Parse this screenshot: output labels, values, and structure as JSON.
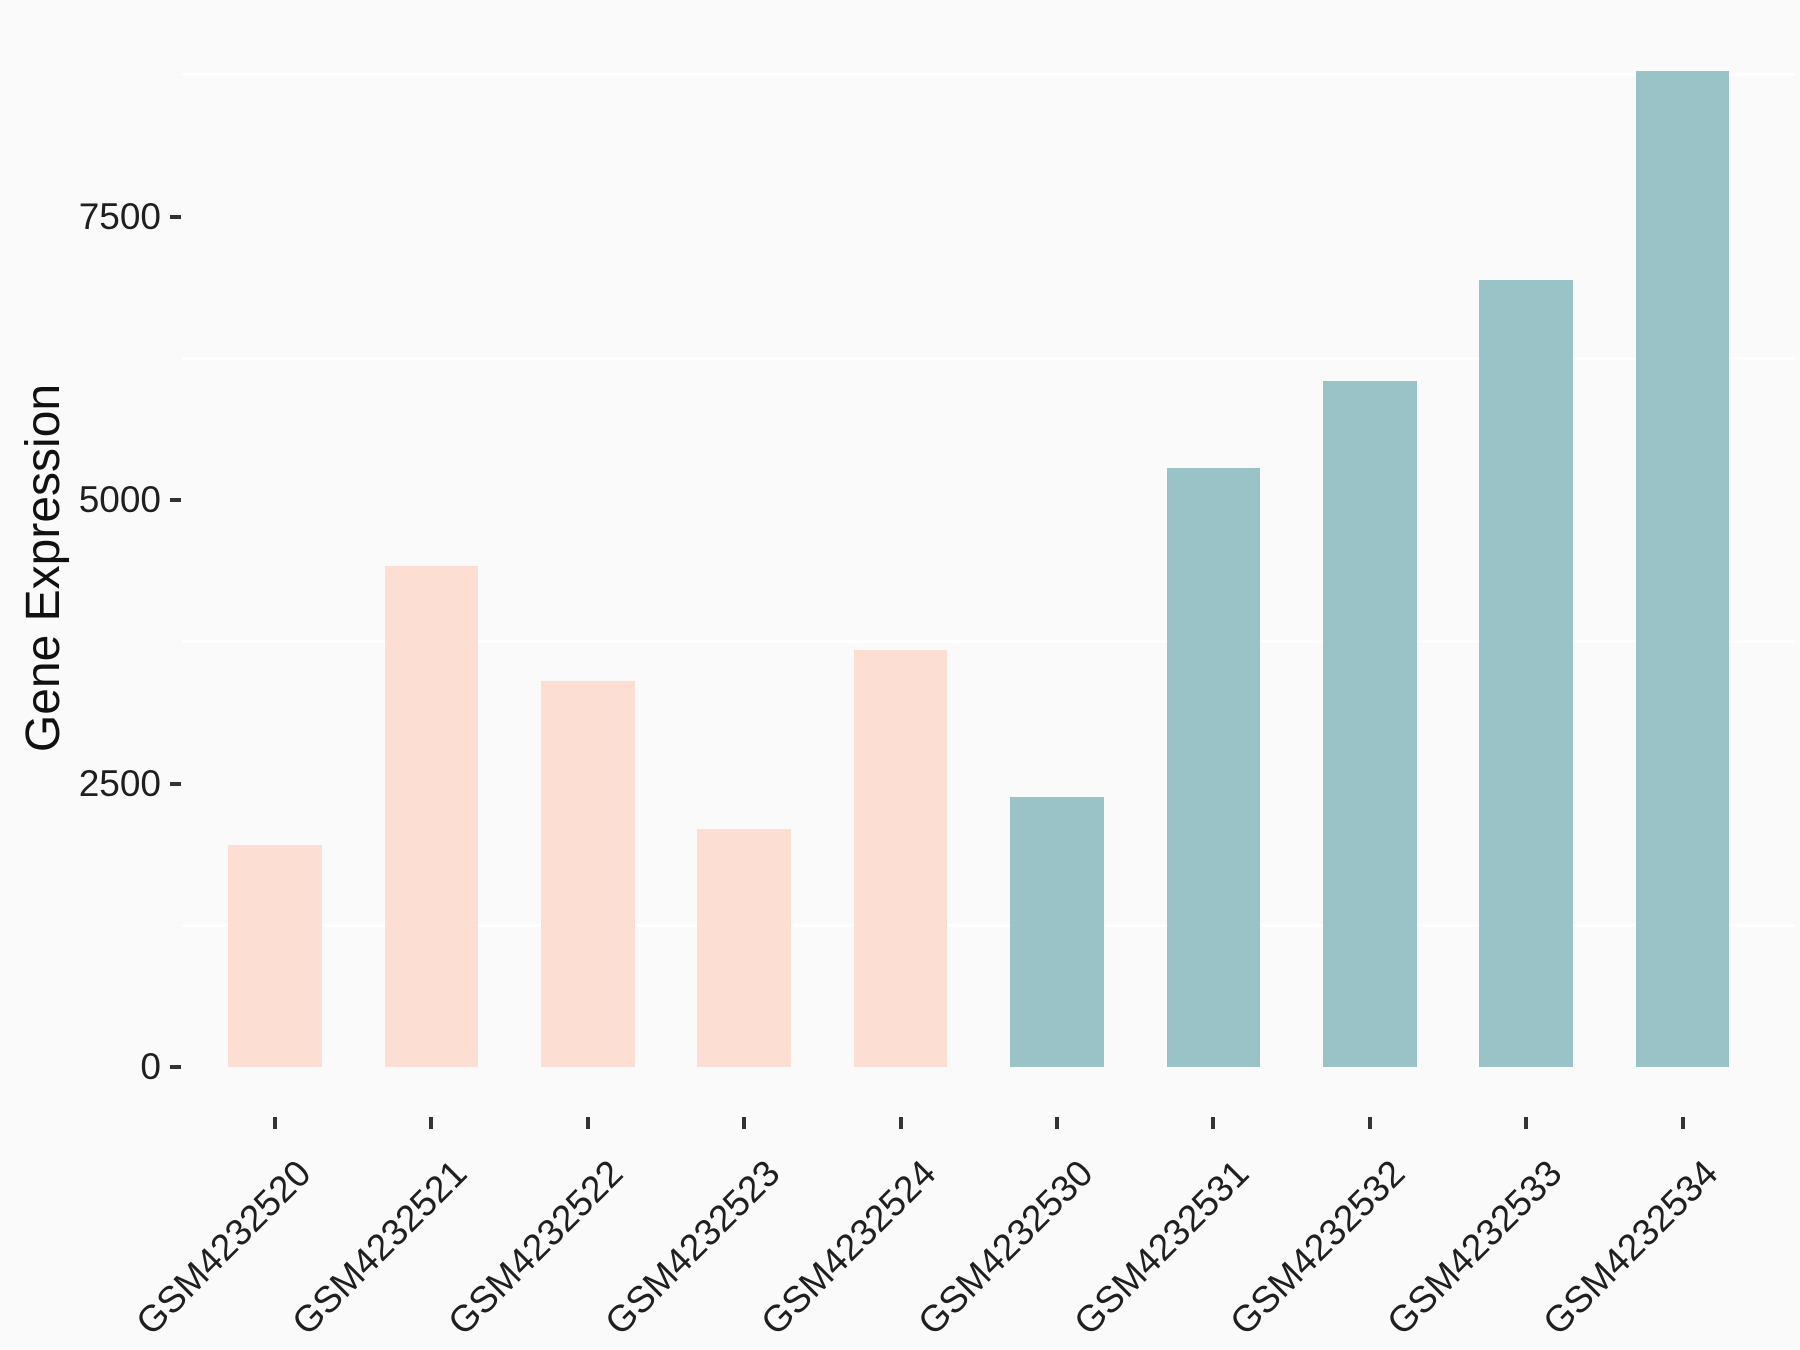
{
  "chart_data": {
    "type": "bar",
    "title": "",
    "xlabel": "",
    "ylabel": "Gene Expression",
    "categories": [
      "GSM4232520",
      "GSM4232521",
      "GSM4232522",
      "GSM4232523",
      "GSM4232524",
      "GSM4232530",
      "GSM4232531",
      "GSM4232532",
      "GSM4232533",
      "GSM4232534"
    ],
    "values": [
      1960,
      4420,
      3400,
      2100,
      3680,
      2380,
      5280,
      6050,
      6940,
      8780
    ],
    "bar_colors": [
      "#fcdfd2",
      "#fcdfd2",
      "#fcdfd2",
      "#fcdfd2",
      "#fcdfd2",
      "#9ac3c7",
      "#9ac3c7",
      "#9ac3c7",
      "#9ac3c7",
      "#9ac3c7"
    ],
    "y_ticks": [
      "0",
      "2500",
      "5000",
      "7500"
    ],
    "y_tick_values": [
      0,
      2500,
      5000,
      7500
    ],
    "minor_gridlines": [
      1250,
      3750,
      6250,
      8750
    ],
    "ylim": [
      0,
      8800
    ],
    "legend": "none",
    "grid": "horizontal white minor gridlines on light-gray panel",
    "x_tick_label_rotation_deg": 45
  },
  "style": {
    "background": "#fafafa",
    "gridline_color": "#ffffff",
    "tick_mark_color": "#333333",
    "text_color": "#1f1f1f",
    "first_group_color": "#fcdfd2",
    "second_group_color": "#9ac3c7"
  }
}
